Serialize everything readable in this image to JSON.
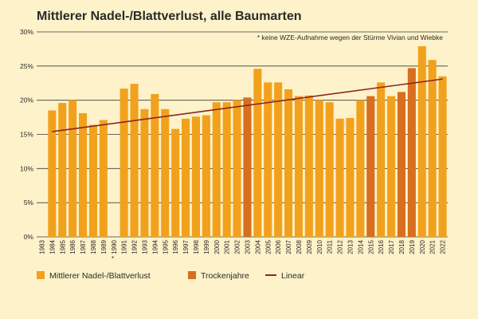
{
  "chart_data": {
    "type": "bar",
    "title": "Mittlerer Nadel-/Blattverlust, alle Baumarten",
    "note": "* keine WZE-Aufnahme wegen der Stürme Vivian und Wiebke",
    "xlabel": "",
    "ylabel": "",
    "ylim": [
      0,
      30
    ],
    "yticks": [
      "0%",
      "5%",
      "10%",
      "15%",
      "20%",
      "25%",
      "30%"
    ],
    "categories": [
      "1983",
      "1984",
      "1985",
      "1986",
      "1987",
      "1988",
      "1989",
      "* 1990",
      "1991",
      "1992",
      "1993",
      "1994",
      "1995",
      "1996",
      "1997",
      "1998",
      "1999",
      "2000",
      "2001",
      "2002",
      "2003",
      "2004",
      "2005",
      "2006",
      "2007",
      "2008",
      "2009",
      "2010",
      "2011",
      "2012",
      "2013",
      "2014",
      "2015",
      "2016",
      "2017",
      "2018",
      "2019",
      "2020",
      "2021",
      "2022"
    ],
    "values": [
      0,
      18.5,
      19.6,
      20.0,
      18.1,
      16.4,
      17.1,
      null,
      21.7,
      22.4,
      18.7,
      20.9,
      18.7,
      15.8,
      17.3,
      17.6,
      17.8,
      19.7,
      19.7,
      20.0,
      20.4,
      24.6,
      22.6,
      22.6,
      21.6,
      20.6,
      20.7,
      20.0,
      19.7,
      17.3,
      17.4,
      20.0,
      20.6,
      22.6,
      20.6,
      21.2,
      24.7,
      27.9,
      25.9,
      23.5
    ],
    "drought_years": [
      "2003",
      "2015",
      "2018",
      "2019"
    ],
    "trend": {
      "start": 15.4,
      "end": 23.1
    },
    "legend": [
      {
        "key": "regular",
        "label": "Mittlerer Nadel-/Blattverlust",
        "color": "#f2a11d"
      },
      {
        "key": "drought",
        "label": "Trockenjahre",
        "color": "#d86e1f"
      },
      {
        "key": "trend",
        "label": "Linear",
        "color": "#8e2420"
      }
    ],
    "gridlines": true,
    "colors": {
      "bar": "#f2a11d",
      "drought_bar": "#d86e1f",
      "trend": "#8e2420",
      "background": "#fdf2c9",
      "grid": "#3a3a3a"
    }
  }
}
